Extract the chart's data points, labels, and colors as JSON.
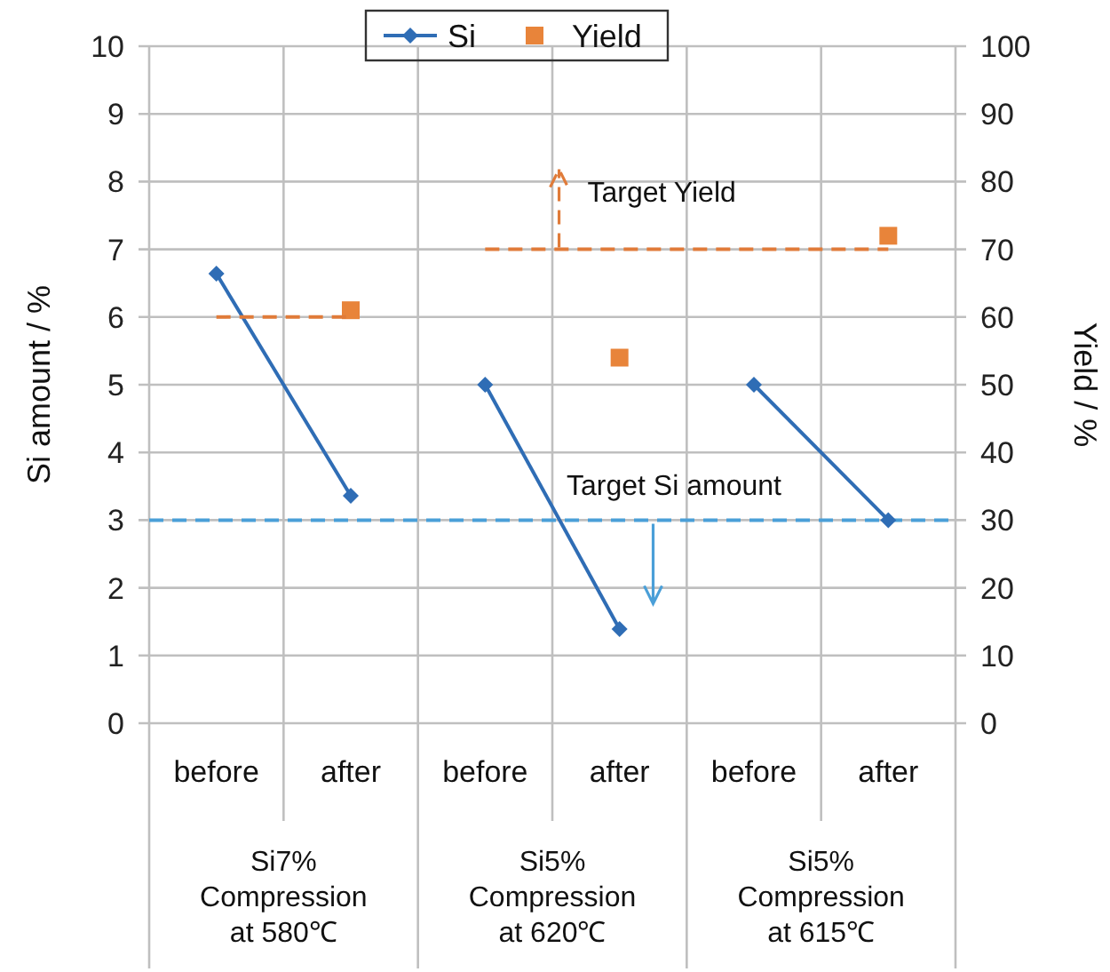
{
  "chart_data": {
    "type": "line",
    "ylabel": "Si amount / %",
    "y2label": "Yield / %",
    "categories": [
      "before",
      "after",
      "before",
      "after",
      "before",
      "after"
    ],
    "ylim": [
      0,
      10
    ],
    "yticks": [
      0,
      1,
      2,
      3,
      4,
      5,
      6,
      7,
      8,
      9,
      10
    ],
    "y2lim": [
      0,
      100
    ],
    "y2ticks": [
      0,
      10,
      20,
      30,
      40,
      50,
      60,
      70,
      80,
      90,
      100
    ],
    "grid": true,
    "legend": "top",
    "series": [
      {
        "name": "Si",
        "color": "#2f6db5",
        "marker": "diamond",
        "values": [
          6.64,
          3.36,
          null,
          null,
          null,
          null
        ]
      },
      {
        "color": "#2f6db5",
        "marker": "diamond",
        "values": [
          null,
          null,
          5,
          1.39,
          null,
          null
        ]
      },
      {
        "color": "#2f6db5",
        "marker": "diamond",
        "values": [
          null,
          null,
          null,
          null,
          5,
          3
        ]
      },
      {
        "name": "Yield",
        "type": "scatter",
        "color": "#e8843a",
        "marker": "square",
        "axis": "y2",
        "values": [
          null,
          61,
          null,
          54,
          null,
          72
        ]
      },
      {
        "type": "line",
        "color": "#e07b39",
        "line_style": "dashed",
        "marker": "none",
        "axis": "y2",
        "values": [
          60,
          60,
          null,
          null,
          null,
          null
        ]
      },
      {
        "name": "Target Yield",
        "type": "line",
        "color": "#e07b39",
        "line_style": "dashed",
        "marker": "none",
        "axis": "y2",
        "values": [
          null,
          null,
          70,
          70,
          70,
          70
        ]
      }
    ],
    "ref_lines": [
      {
        "axis": "y",
        "value": 3,
        "label": "Target Si amount",
        "color": "#4a9fd8",
        "line_style": "dashed"
      }
    ],
    "annotations": [
      "Si7%\nCompression\nat 580℃",
      "Si5%\nCompression\nat 620℃",
      "Si5%\nCompression\nat 615℃"
    ]
  }
}
